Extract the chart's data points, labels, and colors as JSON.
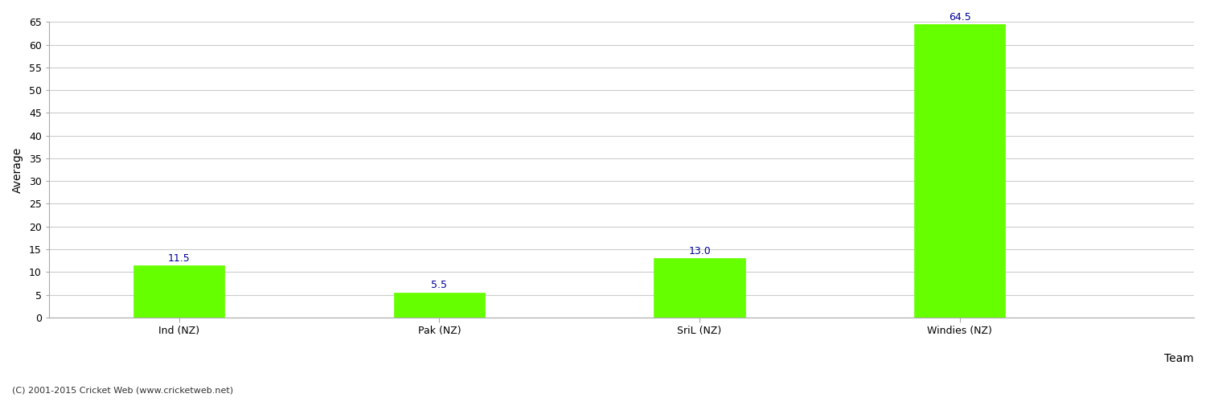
{
  "categories": [
    "Ind (NZ)",
    "Pak (NZ)",
    "SriL (NZ)",
    "Windies (NZ)"
  ],
  "values": [
    11.5,
    5.5,
    13.0,
    64.5
  ],
  "bar_color": "#66ff00",
  "bar_edge_color": "#66ff00",
  "value_color": "#000099",
  "xlabel": "Team",
  "ylabel": "Average",
  "ylim": [
    0,
    65
  ],
  "yticks": [
    0,
    5,
    10,
    15,
    20,
    25,
    30,
    35,
    40,
    45,
    50,
    55,
    60,
    65
  ],
  "background_color": "#ffffff",
  "grid_color": "#cccccc",
  "footer": "(C) 2001-2015 Cricket Web (www.cricketweb.net)",
  "value_fontsize": 9,
  "axis_label_fontsize": 10,
  "tick_fontsize": 9,
  "footer_fontsize": 8
}
